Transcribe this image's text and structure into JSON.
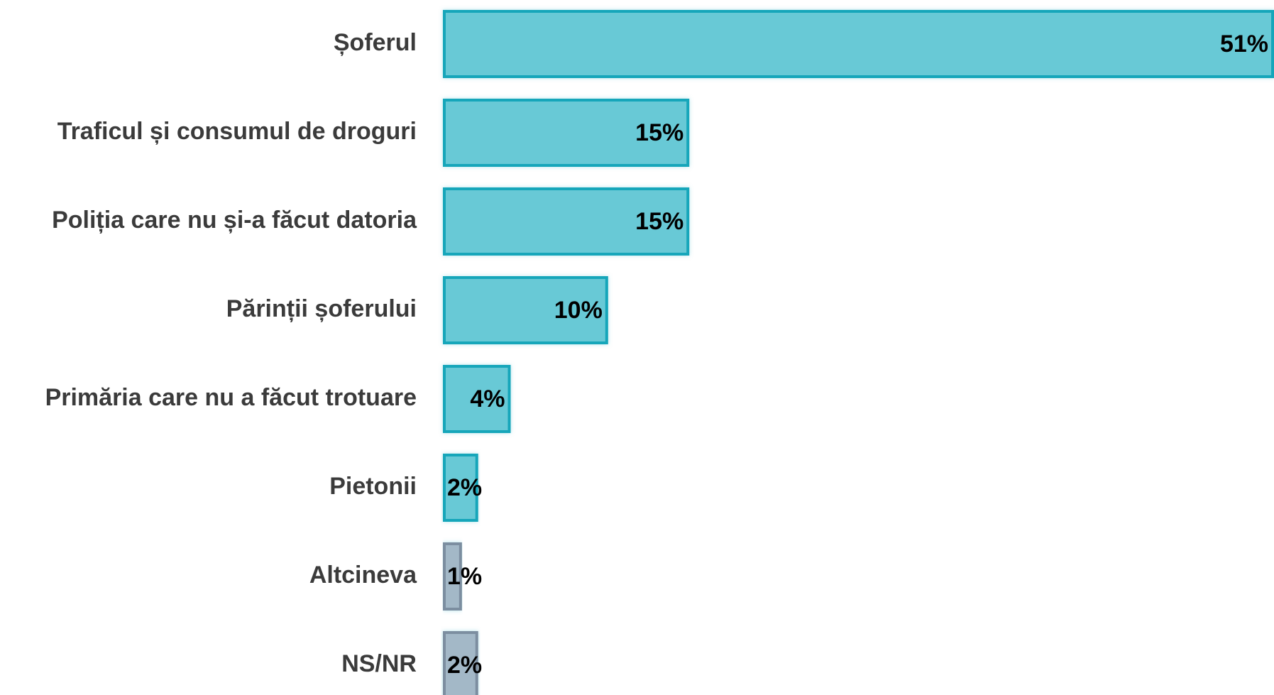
{
  "chart_data": {
    "type": "barh",
    "categories": [
      "Șoferul",
      "Traficul și consumul de droguri",
      "Poliția care nu și-a făcut datoria",
      "Părinții șoferului",
      "Primăria care nu a făcut trotuare",
      "Pietonii",
      "Altcineva",
      "NS/NR"
    ],
    "values": [
      51,
      15,
      15,
      10,
      4,
      2,
      1,
      2
    ],
    "value_labels": [
      "51%",
      "15%",
      "15%",
      "10%",
      "4%",
      "2%",
      "1%",
      "2%"
    ],
    "colors": [
      "#67c9d6",
      "#67c9d6",
      "#67c9d6",
      "#67c9d6",
      "#67c9d6",
      "#67c9d6",
      "#a3b8c7",
      "#a3b8c7"
    ],
    "edge_colors": [
      "#14a6ba",
      "#14a6ba",
      "#14a6ba",
      "#14a6ba",
      "#14a6ba",
      "#14a6ba",
      "#7b8ea0",
      "#7b8ea0"
    ]
  }
}
